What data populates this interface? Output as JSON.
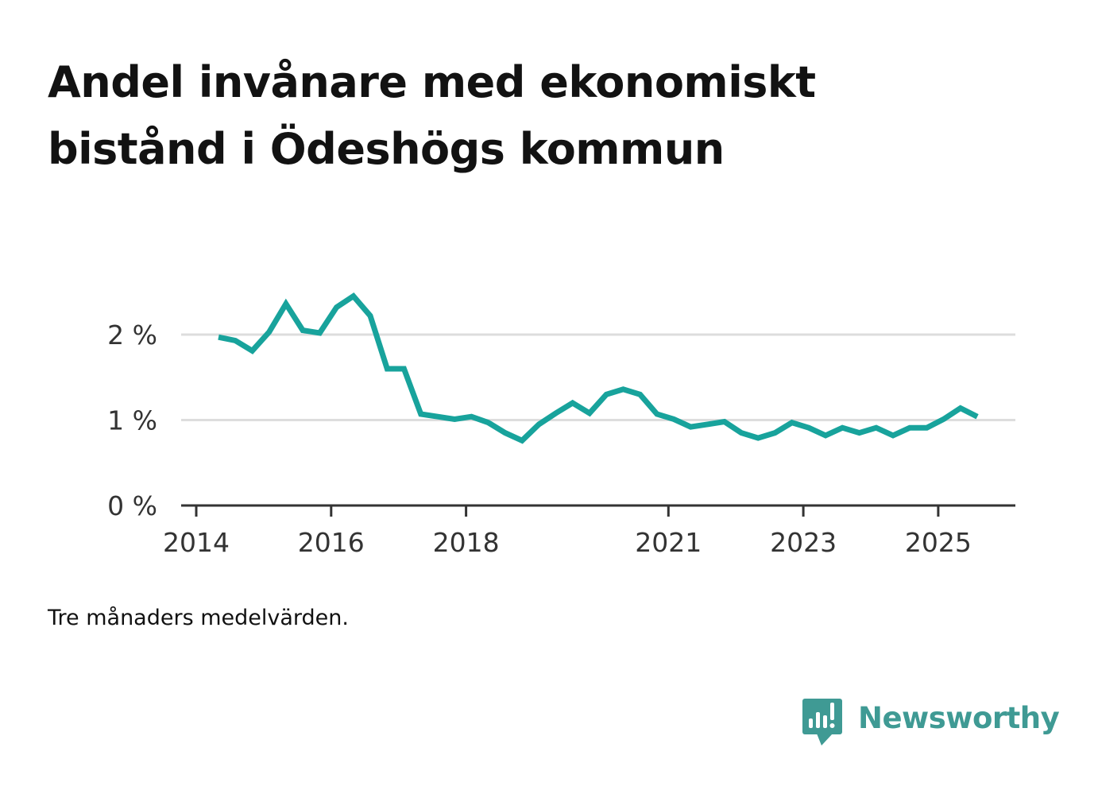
{
  "header": {
    "title": "Andel invånare med ekonomiskt bistånd i Ödeshögs kommun"
  },
  "footer": {
    "note": "Tre månaders medelvärden.",
    "brand": "Newsworthy"
  },
  "colors": {
    "line": "#18a39c",
    "grid": "#dddddd",
    "axis": "#333333",
    "brand": "#3f9a94"
  },
  "chart_data": {
    "type": "line",
    "title": "Andel invånare med ekonomiskt bistånd i Ödeshögs kommun",
    "xlabel": "",
    "ylabel": "",
    "xlim": [
      2014,
      2026.15
    ],
    "ylim": [
      0,
      2.5
    ],
    "x_ticks": [
      {
        "value": 2014,
        "label": "2014"
      },
      {
        "value": 2016,
        "label": "2016"
      },
      {
        "value": 2018,
        "label": "2018"
      },
      {
        "value": 2021,
        "label": "2021"
      },
      {
        "value": 2023,
        "label": "2023"
      },
      {
        "value": 2025,
        "label": "2025"
      }
    ],
    "y_ticks": [
      {
        "value": 0,
        "label": "0 %"
      },
      {
        "value": 1,
        "label": "1 %"
      },
      {
        "value": 2,
        "label": "2 %"
      }
    ],
    "grid": true,
    "series": [
      {
        "name": "Andel invånare med ekonomiskt bistånd",
        "x": [
          2014.33,
          2014.58,
          2014.83,
          2015.08,
          2015.33,
          2015.58,
          2015.83,
          2016.08,
          2016.33,
          2016.58,
          2016.83,
          2017.08,
          2017.33,
          2017.58,
          2017.83,
          2018.08,
          2018.33,
          2018.58,
          2018.83,
          2019.08,
          2019.33,
          2019.58,
          2019.83,
          2020.08,
          2020.33,
          2020.58,
          2020.83,
          2021.08,
          2021.33,
          2021.58,
          2021.83,
          2022.08,
          2022.33,
          2022.58,
          2022.83,
          2023.08,
          2023.33,
          2023.58,
          2023.83,
          2024.08,
          2024.33,
          2024.58,
          2024.83,
          2025.08,
          2025.33,
          2025.58
        ],
        "values": [
          1.97,
          1.93,
          1.81,
          2.03,
          2.36,
          2.05,
          2.02,
          2.32,
          2.45,
          2.22,
          1.6,
          1.6,
          1.07,
          1.04,
          1.01,
          1.04,
          0.97,
          0.85,
          0.76,
          0.95,
          1.08,
          1.2,
          1.08,
          1.3,
          1.36,
          1.3,
          1.07,
          1.01,
          0.92,
          0.95,
          0.98,
          0.85,
          0.79,
          0.85,
          0.97,
          0.91,
          0.82,
          0.91,
          0.85,
          0.91,
          0.82,
          0.91,
          0.91,
          1.01,
          1.14,
          1.04
        ]
      }
    ]
  }
}
